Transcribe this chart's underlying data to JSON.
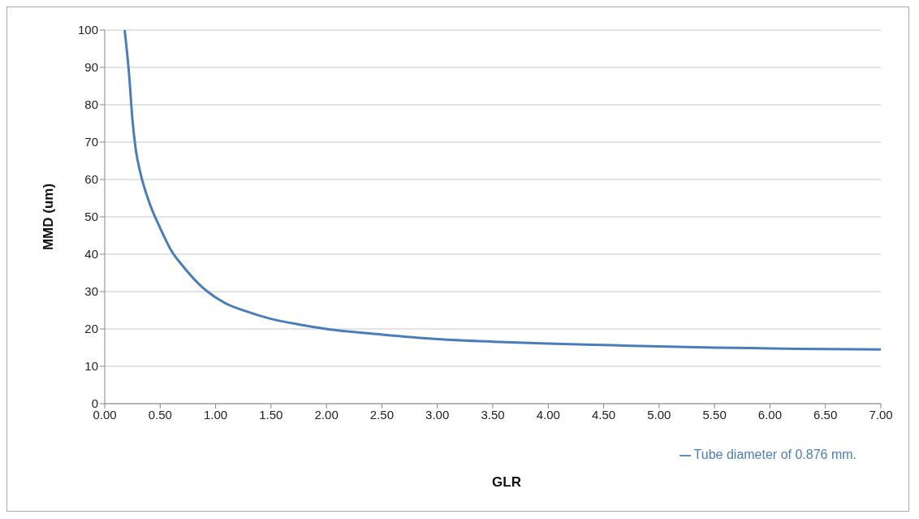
{
  "chart_data": {
    "type": "line",
    "xlabel": "GLR",
    "ylabel": "MMD (um)",
    "x": [
      0.18,
      0.22,
      0.25,
      0.28,
      0.32,
      0.4,
      0.5,
      0.6,
      0.7,
      0.85,
      1.08,
      1.3,
      1.5,
      1.75,
      2.0,
      2.5,
      3.0,
      3.5,
      4.0,
      4.5,
      5.0,
      5.5,
      6.0,
      6.5,
      7.0
    ],
    "series": [
      {
        "name": "Tube diameter of 0.876 mm.",
        "color": "#4a7ebb",
        "values": [
          100,
          88,
          76,
          68,
          62,
          54,
          47,
          41,
          37,
          32,
          27,
          24.5,
          22.7,
          21.2,
          20,
          18.5,
          17.3,
          16.6,
          16.1,
          15.7,
          15.3,
          15.0,
          14.8,
          14.6,
          14.5
        ]
      }
    ],
    "xlim": [
      0,
      7
    ],
    "ylim": [
      0,
      100
    ],
    "xticks": [
      {
        "value": 0,
        "label": "0.00"
      },
      {
        "value": 0.5,
        "label": "0.50"
      },
      {
        "value": 1,
        "label": "1.00"
      },
      {
        "value": 1.5,
        "label": "1.50"
      },
      {
        "value": 2,
        "label": "2.00"
      },
      {
        "value": 2.5,
        "label": "2.50"
      },
      {
        "value": 3,
        "label": "3.00"
      },
      {
        "value": 3.5,
        "label": "3.50"
      },
      {
        "value": 4,
        "label": "4.00"
      },
      {
        "value": 4.5,
        "label": "4.50"
      },
      {
        "value": 5,
        "label": "5.00"
      },
      {
        "value": 5.5,
        "label": "5.50"
      },
      {
        "value": 6,
        "label": "6.00"
      },
      {
        "value": 6.5,
        "label": "6.50"
      },
      {
        "value": 7,
        "label": "7.00"
      }
    ],
    "yticks": [
      0,
      10,
      20,
      30,
      40,
      50,
      60,
      70,
      80,
      90,
      100
    ],
    "grid": "y",
    "legend": "bottom right",
    "marker": "none",
    "line_style": "solid"
  }
}
